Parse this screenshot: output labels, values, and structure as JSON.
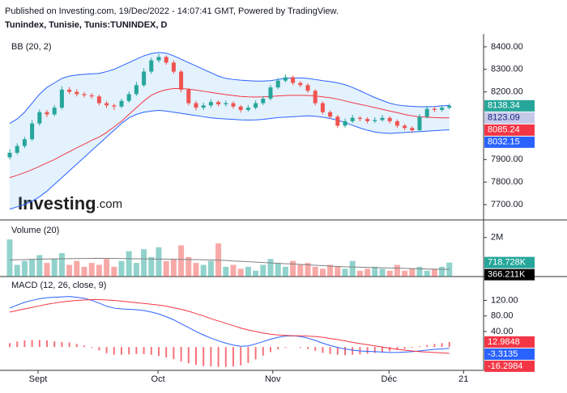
{
  "chart_data": {
    "type": "candlestick",
    "published": "Published on Investing.com, 19/Dec/2022 - 14:07:41 GMT, Powered by TradingView.",
    "title": "Tunindex, Tunisie, Tunis:TUNINDEX, D",
    "logo_word": "Investing",
    "logo_suffix": ".com",
    "price_pane": {
      "label": "BB (20, 2)",
      "ylim": [
        7632,
        8457
      ],
      "yticks": [
        {
          "value": 8400,
          "label": "8400.00"
        },
        {
          "value": 8300,
          "label": "8300.00"
        },
        {
          "value": 8200,
          "label": "8200.00"
        },
        {
          "value": 7900,
          "label": "7900.00"
        },
        {
          "value": 7800,
          "label": "7800.00"
        },
        {
          "value": 7700,
          "label": "7700.00"
        }
      ],
      "up_color": "#26a69a",
      "down_color": "#ef5350",
      "ohlc": [
        [
          7910,
          7945,
          7900,
          7930
        ],
        [
          7930,
          7972,
          7922,
          7960
        ],
        [
          7960,
          8000,
          7950,
          7990
        ],
        [
          7990,
          8075,
          7982,
          8060
        ],
        [
          8060,
          8122,
          8050,
          8110
        ],
        [
          8110,
          8120,
          8088,
          8100
        ],
        [
          8100,
          8142,
          8092,
          8130
        ],
        [
          8130,
          8225,
          8122,
          8210
        ],
        [
          8210,
          8222,
          8190,
          8200
        ],
        [
          8200,
          8212,
          8180,
          8190
        ],
        [
          8190,
          8200,
          8175,
          8185
        ],
        [
          8185,
          8195,
          8170,
          8180
        ],
        [
          8180,
          8188,
          8140,
          8150
        ],
        [
          8150,
          8160,
          8128,
          8140
        ],
        [
          8140,
          8148,
          8120,
          8135
        ],
        [
          8135,
          8170,
          8128,
          8160
        ],
        [
          8160,
          8202,
          8152,
          8190
        ],
        [
          8190,
          8245,
          8182,
          8230
        ],
        [
          8230,
          8305,
          8222,
          8290
        ],
        [
          8290,
          8352,
          8280,
          8340
        ],
        [
          8340,
          8368,
          8330,
          8355
        ],
        [
          8355,
          8362,
          8320,
          8330
        ],
        [
          8330,
          8340,
          8280,
          8290
        ],
        [
          8290,
          8298,
          8198,
          8210
        ],
        [
          8210,
          8218,
          8140,
          8150
        ],
        [
          8150,
          8160,
          8118,
          8130
        ],
        [
          8130,
          8152,
          8120,
          8140
        ],
        [
          8140,
          8168,
          8130,
          8155
        ],
        [
          8155,
          8162,
          8135,
          8145
        ],
        [
          8145,
          8162,
          8135,
          8150
        ],
        [
          8150,
          8158,
          8125,
          8135
        ],
        [
          8135,
          8142,
          8108,
          8120
        ],
        [
          8120,
          8142,
          8112,
          8130
        ],
        [
          8130,
          8162,
          8122,
          8150
        ],
        [
          8150,
          8182,
          8142,
          8170
        ],
        [
          8170,
          8232,
          8162,
          8220
        ],
        [
          8220,
          8262,
          8212,
          8250
        ],
        [
          8250,
          8278,
          8242,
          8265
        ],
        [
          8265,
          8272,
          8230,
          8240
        ],
        [
          8240,
          8248,
          8220,
          8230
        ],
        [
          8230,
          8238,
          8195,
          8205
        ],
        [
          8205,
          8212,
          8140,
          8150
        ],
        [
          8150,
          8158,
          8100,
          8110
        ],
        [
          8110,
          8118,
          8080,
          8090
        ],
        [
          8090,
          8098,
          8040,
          8050
        ],
        [
          8050,
          8082,
          8042,
          8070
        ],
        [
          8070,
          8098,
          8062,
          8085
        ],
        [
          8085,
          8092,
          8070,
          8080
        ],
        [
          8080,
          8088,
          8060,
          8070
        ],
        [
          8070,
          8088,
          8062,
          8075
        ],
        [
          8075,
          8098,
          8068,
          8085
        ],
        [
          8085,
          8092,
          8060,
          8070
        ],
        [
          8070,
          8078,
          8040,
          8050
        ],
        [
          8050,
          8058,
          8030,
          8040
        ],
        [
          8040,
          8048,
          8018,
          8030
        ],
        [
          8030,
          8102,
          8022,
          8090
        ],
        [
          8090,
          8138,
          8082,
          8125
        ],
        [
          8125,
          8135,
          8110,
          8120
        ],
        [
          8120,
          8142,
          8112,
          8130
        ],
        [
          8130,
          8148,
          8122,
          8138.34
        ]
      ],
      "band_fill": "rgba(33,150,243,0.12)",
      "series": [
        {
          "color": "#2962ff",
          "values": [
            8060,
            8080,
            8110,
            8150,
            8190,
            8220,
            8240,
            8260,
            8270,
            8275,
            8278,
            8280,
            8282,
            8290,
            8300,
            8315,
            8330,
            8345,
            8360,
            8370,
            8375,
            8372,
            8360,
            8345,
            8330,
            8315,
            8300,
            8285,
            8270,
            8260,
            8255,
            8252,
            8250,
            8248,
            8248,
            8250,
            8255,
            8260,
            8262,
            8262,
            8260,
            8255,
            8250,
            8246,
            8240,
            8232,
            8220,
            8205,
            8190,
            8175,
            8162,
            8150,
            8142,
            8138,
            8136,
            8134,
            8134,
            8135,
            8138,
            8140
          ]
        },
        {
          "color": "#f23645",
          "values": [
            7820,
            7830,
            7842,
            7855,
            7870,
            7885,
            7900,
            7918,
            7935,
            7952,
            7968,
            7985,
            8000,
            8020,
            8045,
            8070,
            8100,
            8130,
            8160,
            8185,
            8200,
            8210,
            8215,
            8215,
            8212,
            8208,
            8203,
            8198,
            8193,
            8188,
            8184,
            8180,
            8178,
            8177,
            8178,
            8180,
            8182,
            8184,
            8185,
            8185,
            8184,
            8182,
            8178,
            8174,
            8168,
            8160,
            8152,
            8145,
            8138,
            8130,
            8123,
            8115,
            8108,
            8100,
            8094,
            8090,
            8088,
            8086,
            8085,
            8085.24
          ]
        },
        {
          "color": "#2962ff",
          "values": [
            7680,
            7690,
            7700,
            7715,
            7735,
            7760,
            7790,
            7820,
            7850,
            7880,
            7910,
            7940,
            7970,
            8000,
            8030,
            8060,
            8085,
            8100,
            8110,
            8115,
            8118,
            8115,
            8110,
            8105,
            8100,
            8095,
            8090,
            8085,
            8082,
            8080,
            8078,
            8076,
            8075,
            8076,
            8078,
            8082,
            8086,
            8088,
            8090,
            8092,
            8094,
            8092,
            8088,
            8082,
            8074,
            8064,
            8052,
            8040,
            8030,
            8022,
            8018,
            8016,
            8018,
            8020,
            8022,
            8024,
            8026,
            8028,
            8030,
            8032.15
          ]
        }
      ],
      "last_labels": [
        8138.34,
        8123.09,
        8085.24,
        8032.15
      ],
      "last_label_colors": [
        "#26a69a",
        "#c5cae9",
        "#f23645",
        "#2962ff"
      ],
      "last_label_text_colors": [
        "#ffffff",
        "#1a237e",
        "#ffffff",
        "#ffffff"
      ]
    },
    "volume_pane": {
      "label": "Volume (20)",
      "ylim": [
        0,
        2900000
      ],
      "yticks": [
        {
          "value": 2000000,
          "label": "2M"
        }
      ],
      "up_color": "rgba(38,166,154,0.5)",
      "down_color": "rgba(239,83,80,0.5)",
      "values": [
        1900000,
        600000,
        800000,
        900000,
        1100000,
        700000,
        900000,
        1200000,
        600000,
        800000,
        500000,
        700000,
        600000,
        900000,
        500000,
        800000,
        1300000,
        700000,
        1400000,
        1000000,
        1500000,
        800000,
        900000,
        1600000,
        1000000,
        700000,
        600000,
        800000,
        1700000,
        500000,
        600000,
        400000,
        500000,
        300000,
        600000,
        900000,
        700000,
        500000,
        800000,
        600000,
        700000,
        500000,
        400000,
        600000,
        500000,
        400000,
        800000,
        300000,
        400000,
        500000,
        400000,
        300000,
        600000,
        300000,
        400000,
        500000,
        300000,
        400000,
        500000,
        718728
      ],
      "ma_color": "#808080",
      "ma": [
        850000,
        860000,
        870000,
        880000,
        890000,
        900000,
        905000,
        910000,
        915000,
        920000,
        925000,
        930000,
        935000,
        930000,
        925000,
        920000,
        915000,
        910000,
        905000,
        900000,
        895000,
        890000,
        885000,
        880000,
        875000,
        870000,
        860000,
        850000,
        840000,
        830000,
        800000,
        780000,
        760000,
        740000,
        720000,
        700000,
        680000,
        660000,
        640000,
        620000,
        600000,
        580000,
        560000,
        540000,
        520000,
        500000,
        490000,
        480000,
        470000,
        460000,
        450000,
        440000,
        430000,
        420000,
        410000,
        400000,
        390000,
        380000,
        375000,
        366211
      ],
      "last_labels": [
        {
          "value": 718728,
          "label": "718.728K"
        },
        {
          "value": 366211,
          "label": "366.211K"
        }
      ],
      "last_label_colors": [
        "#26a69a",
        "#000000"
      ]
    },
    "macd_pane": {
      "label": "MACD (12, 26, close, 9)",
      "ylim": [
        -60,
        175
      ],
      "yticks": [
        {
          "value": 120,
          "label": "120.00"
        },
        {
          "value": 80,
          "label": "80.00"
        },
        {
          "value": 40,
          "label": "40.00"
        }
      ],
      "hist_color": "rgba(242,54,69,0.7)",
      "histogram": [
        10,
        14,
        17,
        18,
        18,
        17,
        15,
        13,
        12,
        8,
        4,
        -2,
        -9,
        -16,
        -20,
        -20,
        -19,
        -18,
        -18,
        -20,
        -23,
        -27,
        -31,
        -37,
        -42,
        -46,
        -49,
        -50,
        -51,
        -51,
        -50,
        -47,
        -41,
        -32,
        -22,
        -13,
        -6,
        -2,
        0,
        -2,
        -5,
        -10,
        -15,
        -18,
        -20,
        -21,
        -20,
        -19,
        -17,
        -15,
        -13,
        -11,
        -8,
        -5,
        -2,
        2,
        5,
        8,
        10,
        12.9848
      ],
      "series": [
        {
          "color": "#2962ff",
          "values": [
            100,
            108,
            115,
            120,
            124,
            127,
            128,
            129,
            130,
            128,
            125,
            120,
            113,
            105,
            100,
            98,
            97,
            96,
            94,
            90,
            85,
            78,
            70,
            60,
            50,
            40,
            31,
            23,
            16,
            10,
            5,
            2,
            3,
            8,
            14,
            20,
            25,
            28,
            29,
            27,
            23,
            17,
            10,
            4,
            -1,
            -5,
            -8,
            -10,
            -11,
            -12,
            -13,
            -14,
            -14,
            -13,
            -12,
            -10,
            -8,
            -6,
            -5,
            -3.3135
          ]
        },
        {
          "color": "#f23645",
          "values": [
            90,
            94,
            98,
            102,
            106,
            110,
            113,
            116,
            118,
            120,
            121,
            122,
            122,
            121,
            120,
            118,
            116,
            114,
            112,
            110,
            108,
            105,
            101,
            97,
            92,
            86,
            80,
            73,
            67,
            61,
            55,
            49,
            44,
            40,
            36,
            33,
            31,
            30,
            29,
            29,
            28,
            27,
            25,
            22,
            19,
            16,
            12,
            9,
            6,
            3,
            0,
            -3,
            -6,
            -8,
            -10,
            -12,
            -13,
            -14,
            -15,
            -16.2984
          ]
        }
      ],
      "last_labels": [
        12.9848,
        -3.3135,
        -16.2984
      ],
      "last_label_colors": [
        "#f23645",
        "#2962ff",
        "#f23645"
      ]
    },
    "xticks": [
      {
        "value": 3.8,
        "label": "Sept"
      },
      {
        "value": 19.9,
        "label": "Oct"
      },
      {
        "value": 35.3,
        "label": "Nov"
      },
      {
        "value": 50.9,
        "label": "Déc"
      },
      {
        "value": 60.9,
        "label": "21"
      }
    ]
  }
}
